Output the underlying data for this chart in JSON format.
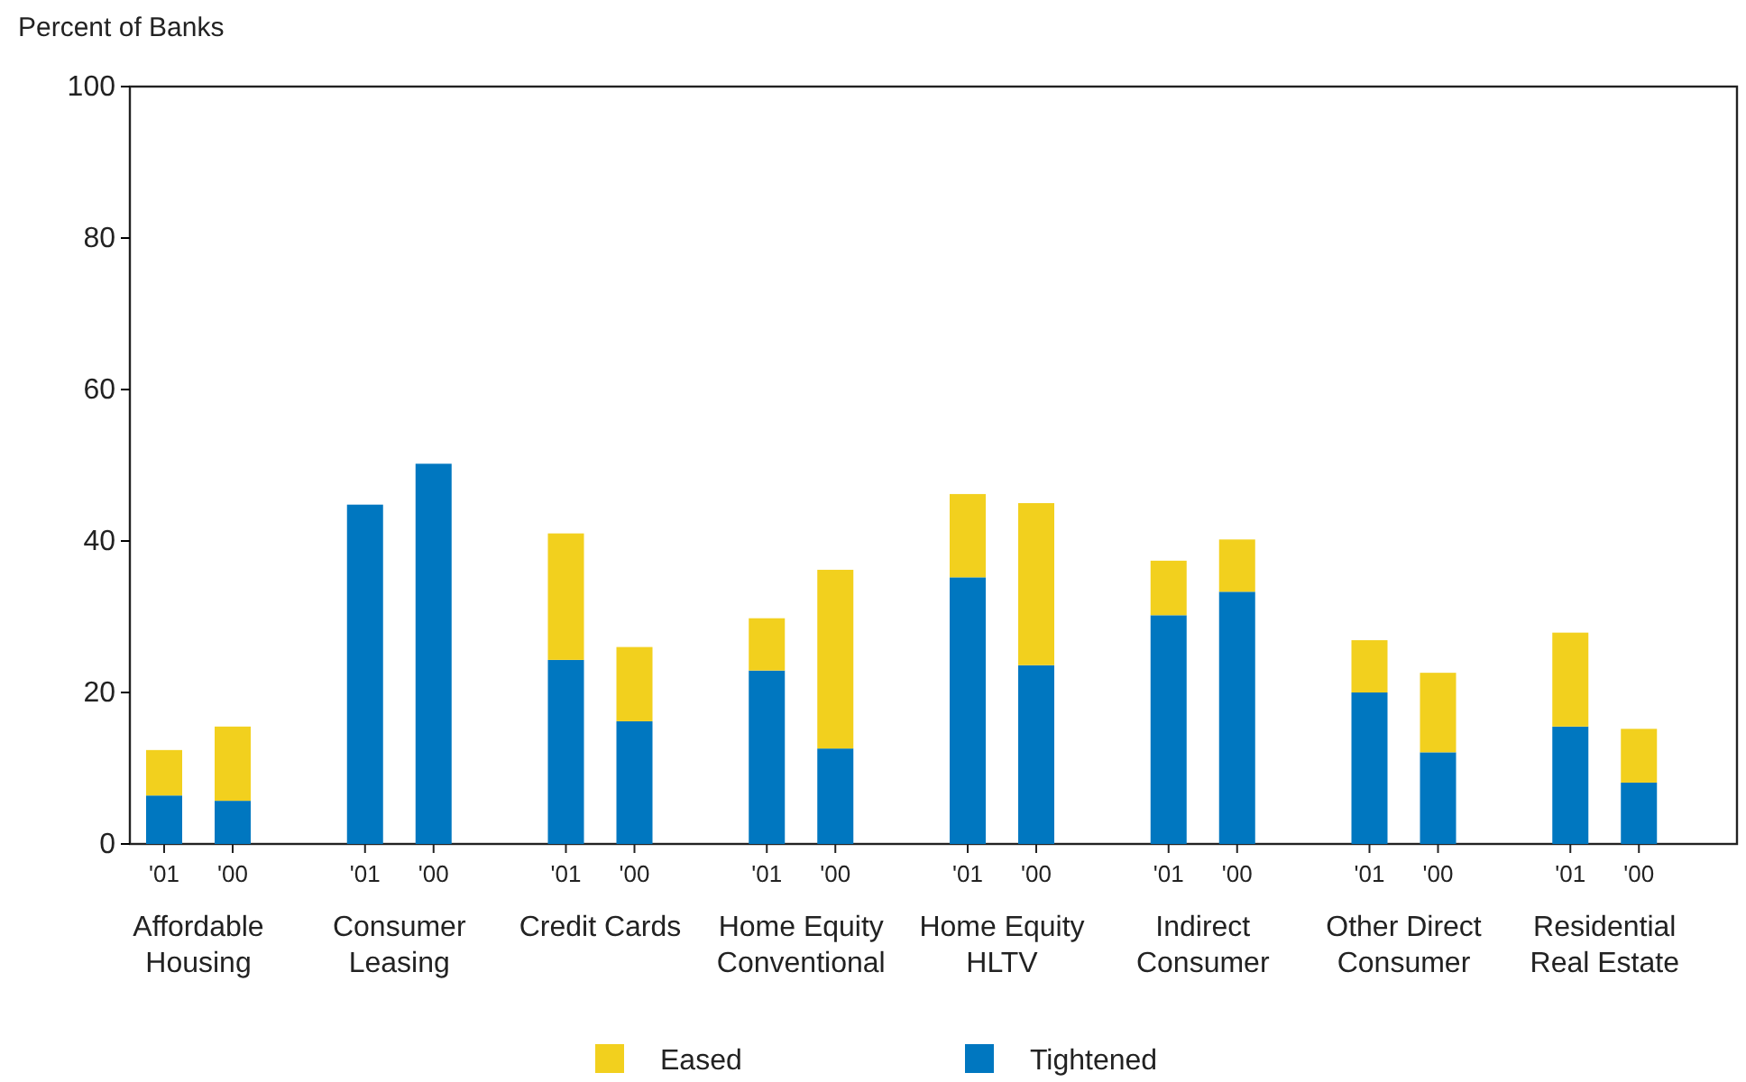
{
  "chart_data": {
    "type": "bar",
    "stacked": true,
    "ylabel": "Percent of Banks",
    "categories": [
      "'01",
      "'00",
      "'01",
      "'00",
      "'01",
      "'00",
      "'01",
      "'00",
      "'01",
      "'00",
      "'01",
      "'00",
      "'01",
      "'00",
      "'01",
      "'00"
    ],
    "series": [
      {
        "name": "Tightened",
        "color": "#0077c0",
        "values": [
          6.4,
          5.7,
          44.8,
          50.2,
          24.3,
          16.2,
          22.9,
          12.6,
          35.2,
          23.6,
          30.2,
          33.3,
          20,
          12.1,
          15.5,
          8.1
        ]
      },
      {
        "name": "Eased",
        "color": "#f2d01e",
        "values": [
          6,
          9.8,
          0,
          0,
          16.7,
          9.8,
          6.9,
          23.6,
          11,
          21.4,
          7.2,
          6.9,
          6.9,
          10.5,
          12.4,
          7.1
        ]
      }
    ],
    "ylim": [
      0,
      100
    ],
    "yticks": [
      0,
      20,
      40,
      60,
      80,
      100
    ],
    "legend": "bottom",
    "annotations": [
      "Affordable Housing",
      "Consumer Leasing",
      "Credit Cards",
      "Home Equity Conventional",
      "Home Equity HLTV",
      "Indirect Consumer",
      "Other Direct Consumer",
      "Residential Real Estate"
    ]
  }
}
